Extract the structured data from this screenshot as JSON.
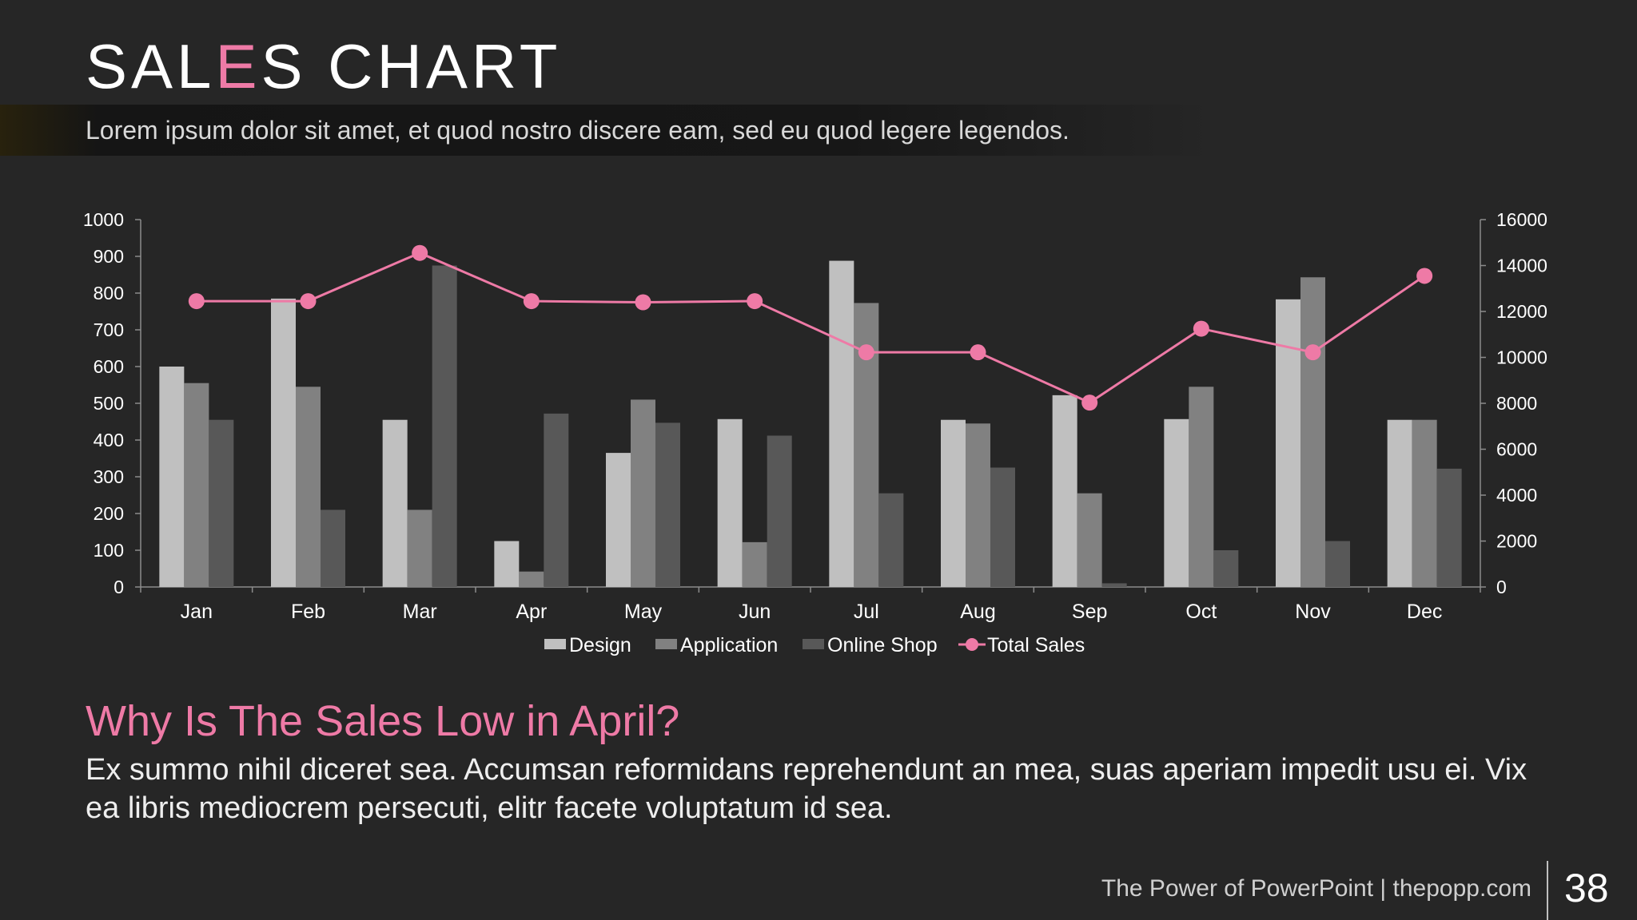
{
  "slide": {
    "title_parts": [
      "SAL",
      "E",
      "S CHART"
    ],
    "subtitle": "Lorem ipsum dolor sit amet, et quod nostro discere eam, sed eu quod legere legendos.",
    "question": "Why Is The Sales Low in April?",
    "body": "Ex summo nihil diceret sea. Accumsan reformidans reprehendunt an mea, suas aperiam impedit usu ei. Vix ea libris mediocrem persecuti, elitr facete voluptatum id sea.",
    "footer": "The Power of PowerPoint | thepopp.com",
    "page_number": "38"
  },
  "colors": {
    "background": "#262626",
    "accent": "#ee7aa6",
    "design": "#c0c0c0",
    "application": "#818181",
    "online_shop": "#585858",
    "axis": "#8c8c8c",
    "text": "#ffffff"
  },
  "chart_data": {
    "type": "bar",
    "categories": [
      "Jan",
      "Feb",
      "Mar",
      "Apr",
      "May",
      "Jun",
      "Jul",
      "Aug",
      "Sep",
      "Oct",
      "Nov",
      "Dec"
    ],
    "series": [
      {
        "name": "Design",
        "type": "bar",
        "axis": "left",
        "values": [
          600,
          785,
          455,
          125,
          365,
          457,
          888,
          455,
          522,
          457,
          783,
          455
        ]
      },
      {
        "name": "Application",
        "type": "bar",
        "axis": "left",
        "values": [
          555,
          545,
          210,
          42,
          510,
          122,
          773,
          445,
          255,
          545,
          843,
          455
        ]
      },
      {
        "name": "Online Shop",
        "type": "bar",
        "axis": "left",
        "values": [
          455,
          210,
          875,
          472,
          447,
          412,
          255,
          325,
          10,
          100,
          125,
          322
        ]
      },
      {
        "name": "Total Sales",
        "type": "line",
        "axis": "right",
        "values": [
          12450,
          12450,
          14550,
          12450,
          12400,
          12450,
          10220,
          10220,
          8030,
          11250,
          10220,
          13550
        ]
      }
    ],
    "y_left": {
      "min": 0,
      "max": 1000,
      "ticks": [
        0,
        100,
        200,
        300,
        400,
        500,
        600,
        700,
        800,
        900,
        1000
      ]
    },
    "y_right": {
      "min": 0,
      "max": 16000,
      "ticks": [
        0,
        2000,
        4000,
        6000,
        8000,
        10000,
        12000,
        14000,
        16000
      ]
    },
    "legend_position": "bottom",
    "grid": false
  }
}
